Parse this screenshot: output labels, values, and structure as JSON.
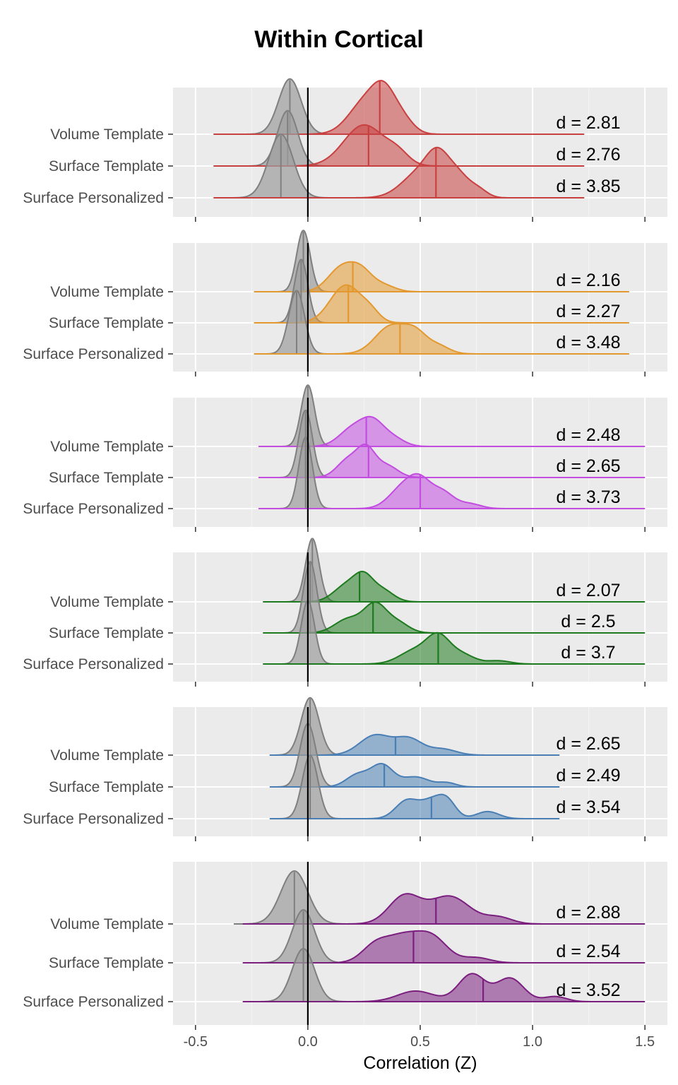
{
  "chart_data": {
    "type": "ridgeline",
    "title": "Within Cortical",
    "xlabel": "Correlation (Z)",
    "xlim": [
      -0.6,
      1.6
    ],
    "x_ticks": [
      "-0.5",
      "0.0",
      "0.5",
      "1.0",
      "1.5"
    ],
    "x_tick_values": [
      -0.5,
      0.0,
      0.5,
      1.0,
      1.5
    ],
    "vertical_reference_line": 0.0,
    "grid": true,
    "null_color": "#7f7f7f",
    "panels": [
      {
        "color": "#c94040",
        "range": [
          -0.42,
          1.23
        ],
        "rows": [
          {
            "label": "Volume Template",
            "d_label": "d = 2.81",
            "null_median": -0.08,
            "null_sd": 0.05,
            "null_peak": 1.35,
            "median": 0.32,
            "peaks": [
              [
                0.26,
                0.075,
                0.82
              ],
              [
                0.34,
                0.05,
                0.72
              ],
              [
                0.42,
                0.05,
                0.35
              ]
            ]
          },
          {
            "label": "Surface Template",
            "d_label": "d = 2.76",
            "null_median": -0.09,
            "null_sd": 0.045,
            "null_peak": 1.35,
            "median": 0.27,
            "peaks": [
              [
                0.25,
                0.09,
                1.0
              ],
              [
                0.4,
                0.05,
                0.25
              ]
            ]
          },
          {
            "label": "Surface Personalized",
            "d_label": "d = 3.85",
            "null_median": -0.12,
            "null_sd": 0.055,
            "null_peak": 1.55,
            "median": 0.57,
            "peaks": [
              [
                0.5,
                0.08,
                0.62
              ],
              [
                0.58,
                0.05,
                0.75
              ],
              [
                0.67,
                0.05,
                0.5
              ],
              [
                0.76,
                0.04,
                0.18
              ]
            ]
          }
        ]
      },
      {
        "color": "#e3992f",
        "range": [
          -0.24,
          1.43
        ],
        "rows": [
          {
            "label": "Volume Template",
            "d_label": "d = 2.16",
            "null_median": -0.02,
            "null_sd": 0.03,
            "null_peak": 1.55,
            "median": 0.2,
            "peaks": [
              [
                0.15,
                0.06,
                0.6
              ],
              [
                0.24,
                0.05,
                0.45
              ],
              [
                0.34,
                0.05,
                0.15
              ]
            ]
          },
          {
            "label": "Surface Template",
            "d_label": "d = 2.27",
            "null_median": -0.03,
            "null_sd": 0.03,
            "null_peak": 1.6,
            "median": 0.18,
            "peaks": [
              [
                0.17,
                0.07,
                0.95
              ],
              [
                0.28,
                0.04,
                0.2
              ]
            ]
          },
          {
            "label": "Surface Personalized",
            "d_label": "d = 3.48",
            "null_median": -0.05,
            "null_sd": 0.035,
            "null_peak": 1.6,
            "median": 0.41,
            "peaks": [
              [
                0.37,
                0.07,
                0.7
              ],
              [
                0.48,
                0.05,
                0.45
              ],
              [
                0.58,
                0.05,
                0.2
              ]
            ]
          }
        ]
      },
      {
        "color": "#c24de0",
        "range": [
          -0.22,
          1.5
        ],
        "rows": [
          {
            "label": "Volume Template",
            "d_label": "d = 2.48",
            "null_median": 0.0,
            "null_sd": 0.03,
            "null_peak": 1.55,
            "median": 0.26,
            "peaks": [
              [
                0.2,
                0.06,
                0.45
              ],
              [
                0.29,
                0.05,
                0.55
              ],
              [
                0.38,
                0.05,
                0.2
              ]
            ]
          },
          {
            "label": "Surface Template",
            "d_label": "d = 2.65",
            "null_median": -0.01,
            "null_sd": 0.03,
            "null_peak": 1.7,
            "median": 0.27,
            "peaks": [
              [
                0.18,
                0.05,
                0.45
              ],
              [
                0.26,
                0.04,
                0.65
              ],
              [
                0.35,
                0.05,
                0.3
              ]
            ]
          },
          {
            "label": "Surface Personalized",
            "d_label": "d = 3.73",
            "null_median": -0.01,
            "null_sd": 0.03,
            "null_peak": 1.8,
            "median": 0.5,
            "peaks": [
              [
                0.42,
                0.06,
                0.5
              ],
              [
                0.5,
                0.05,
                0.6
              ],
              [
                0.6,
                0.05,
                0.4
              ],
              [
                0.72,
                0.05,
                0.12
              ]
            ]
          }
        ]
      },
      {
        "color": "#1e7a1e",
        "range": [
          -0.2,
          1.5
        ],
        "rows": [
          {
            "label": "Volume Template",
            "d_label": "d = 2.07",
            "null_median": 0.02,
            "null_sd": 0.03,
            "null_peak": 1.6,
            "median": 0.23,
            "peaks": [
              [
                0.18,
                0.06,
                0.45
              ],
              [
                0.25,
                0.04,
                0.45
              ],
              [
                0.33,
                0.05,
                0.3
              ]
            ]
          },
          {
            "label": "Surface Template",
            "d_label": "d = 2.5",
            "null_median": 0.01,
            "null_sd": 0.03,
            "null_peak": 1.8,
            "median": 0.29,
            "peaks": [
              [
                0.18,
                0.06,
                0.35
              ],
              [
                0.3,
                0.05,
                0.7
              ],
              [
                0.4,
                0.05,
                0.25
              ]
            ]
          },
          {
            "label": "Surface Personalized",
            "d_label": "d = 3.7",
            "null_median": 0.0,
            "null_sd": 0.03,
            "null_peak": 1.6,
            "median": 0.58,
            "peaks": [
              [
                0.48,
                0.07,
                0.35
              ],
              [
                0.58,
                0.05,
                0.6
              ],
              [
                0.68,
                0.06,
                0.25
              ],
              [
                0.85,
                0.05,
                0.08
              ]
            ]
          }
        ]
      },
      {
        "color": "#4a7fb5",
        "range": [
          -0.17,
          1.12
        ],
        "rows": [
          {
            "label": "Volume Template",
            "d_label": "d = 2.65",
            "null_median": 0.01,
            "null_sd": 0.04,
            "null_peak": 1.45,
            "median": 0.39,
            "peaks": [
              [
                0.3,
                0.07,
                0.5
              ],
              [
                0.45,
                0.06,
                0.4
              ],
              [
                0.6,
                0.06,
                0.15
              ]
            ]
          },
          {
            "label": "Surface Template",
            "d_label": "d = 2.49",
            "null_median": 0.0,
            "null_sd": 0.035,
            "null_peak": 1.6,
            "median": 0.34,
            "peaks": [
              [
                0.22,
                0.05,
                0.3
              ],
              [
                0.33,
                0.05,
                0.55
              ],
              [
                0.48,
                0.06,
                0.25
              ],
              [
                0.62,
                0.04,
                0.1
              ]
            ]
          },
          {
            "label": "Surface Personalized",
            "d_label": "d = 3.54",
            "null_median": 0.01,
            "null_sd": 0.035,
            "null_peak": 1.6,
            "median": 0.55,
            "peaks": [
              [
                0.44,
                0.05,
                0.45
              ],
              [
                0.55,
                0.05,
                0.42
              ],
              [
                0.62,
                0.04,
                0.4
              ],
              [
                0.8,
                0.05,
                0.18
              ]
            ]
          }
        ]
      },
      {
        "color": "#7b1f7f",
        "range": [
          -0.29,
          1.5
        ],
        "rows": [
          {
            "label": "Volume Template",
            "d_label": "d = 2.88",
            "null_median": -0.06,
            "null_sd": 0.06,
            "null_peak": 1.25,
            "median": 0.57,
            "peaks": [
              [
                0.43,
                0.07,
                0.65
              ],
              [
                0.63,
                0.09,
                0.65
              ],
              [
                0.85,
                0.06,
                0.15
              ]
            ]
          },
          {
            "label": "Surface Template",
            "d_label": "d = 2.54",
            "null_median": -0.02,
            "null_sd": 0.05,
            "null_peak": 1.25,
            "median": 0.47,
            "peaks": [
              [
                0.3,
                0.06,
                0.4
              ],
              [
                0.42,
                0.07,
                0.55
              ],
              [
                0.55,
                0.07,
                0.6
              ],
              [
                0.75,
                0.06,
                0.12
              ]
            ]
          },
          {
            "label": "Surface Personalized",
            "d_label": "d = 3.52",
            "null_median": -0.02,
            "null_sd": 0.05,
            "null_peak": 1.25,
            "median": 0.78,
            "peaks": [
              [
                0.48,
                0.08,
                0.25
              ],
              [
                0.73,
                0.06,
                0.65
              ],
              [
                0.9,
                0.06,
                0.55
              ],
              [
                1.1,
                0.05,
                0.12
              ]
            ]
          }
        ]
      }
    ]
  }
}
